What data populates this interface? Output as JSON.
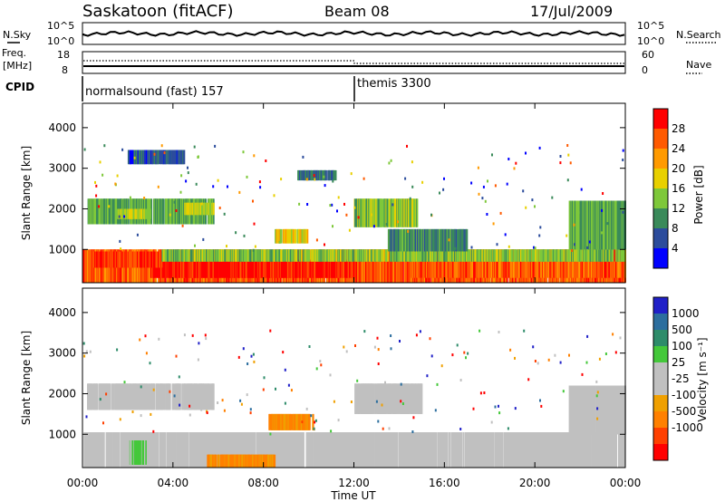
{
  "header": {
    "station": "Saskatoon (fitACF)",
    "beam": "Beam 08",
    "date": "17/Jul/2009"
  },
  "noise_panel": {
    "left_label": "N.Sky",
    "right_label": "N.Search",
    "ticks_left": [
      "10^5",
      "10^0"
    ],
    "ticks_right": [
      "10^5",
      "10^0"
    ]
  },
  "freq_panel": {
    "left_label_1": "Freq.",
    "left_label_2": "[MHz]",
    "right_label": "Nave",
    "ticks_left": [
      "18",
      "8"
    ],
    "ticks_right": [
      "60",
      "0"
    ]
  },
  "cpid": {
    "label": "CPID",
    "modes": [
      {
        "name": "normalsound (fast) 157",
        "start_hour": 0
      },
      {
        "name": "themis 3300",
        "start_hour": 12
      }
    ]
  },
  "colors": {
    "power_scale": [
      "#0000ff",
      "#2c4c9c",
      "#3a8a5a",
      "#7ec83a",
      "#e8d000",
      "#ff9a00",
      "#ff5a00",
      "#ff0000"
    ],
    "velocity_scale": [
      "#2020c8",
      "#2c6e9e",
      "#2e8c6a",
      "#44c83a",
      "#c0c0c0",
      "#c0c0c0",
      "#f0a000",
      "#ff8000",
      "#ff4000",
      "#ff0000"
    ],
    "ground_scatter": "#c0c0c0"
  },
  "chart_data": [
    {
      "type": "heatmap",
      "title": "Power",
      "xlabel": "Time UT",
      "ylabel": "Slant Range [km]",
      "x_ticks": [
        "00:00",
        "04:00",
        "08:00",
        "12:00",
        "16:00",
        "20:00",
        "00:00"
      ],
      "y_ticks": [
        1000,
        2000,
        3000,
        4000
      ],
      "xlim_hours": [
        0,
        24
      ],
      "ylim_km": [
        180,
        4600
      ],
      "colorbar": {
        "label": "Power [dB]",
        "ticks": [
          4,
          8,
          12,
          16,
          20,
          24,
          28
        ],
        "range": [
          0,
          32
        ]
      },
      "regions": [
        {
          "t": [
            0.2,
            5.8
          ],
          "r": [
            1620,
            2250
          ],
          "level": 12
        },
        {
          "t": [
            1.5,
            3.0
          ],
          "r": [
            1750,
            2000
          ],
          "level": 16
        },
        {
          "t": [
            4.5,
            5.8
          ],
          "r": [
            1850,
            2150
          ],
          "level": 16
        },
        {
          "t": [
            0.0,
            24.0
          ],
          "r": [
            180,
            1000
          ],
          "level": 26
        },
        {
          "t": [
            3.0,
            12.0
          ],
          "r": [
            300,
            750
          ],
          "level": 30
        },
        {
          "t": [
            0.5,
            3.5
          ],
          "r": [
            550,
            950
          ],
          "level": 28
        },
        {
          "t": [
            14.5,
            24.0
          ],
          "r": [
            300,
            700
          ],
          "level": 26
        },
        {
          "t": [
            3.5,
            24.0
          ],
          "r": [
            700,
            1000
          ],
          "level": 14
        },
        {
          "t": [
            12.0,
            14.8
          ],
          "r": [
            1550,
            2250
          ],
          "level": 14
        },
        {
          "t": [
            13.5,
            17.0
          ],
          "r": [
            950,
            1500
          ],
          "level": 10
        },
        {
          "t": [
            21.5,
            24.0
          ],
          "r": [
            1000,
            2200
          ],
          "level": 12
        },
        {
          "t": [
            8.5,
            10.0
          ],
          "r": [
            1150,
            1500
          ],
          "level": 18
        },
        {
          "t": [
            2.0,
            4.5
          ],
          "r": [
            3100,
            3450
          ],
          "level": 6
        },
        {
          "t": [
            9.5,
            11.2
          ],
          "r": [
            2700,
            2950
          ],
          "level": 8
        }
      ]
    },
    {
      "type": "heatmap",
      "title": "Velocity",
      "xlabel": "Time UT",
      "ylabel": "Slant Range [km]",
      "x_ticks": [
        "00:00",
        "04:00",
        "08:00",
        "12:00",
        "16:00",
        "20:00",
        "00:00"
      ],
      "y_ticks": [
        1000,
        2000,
        3000,
        4000
      ],
      "xlim_hours": [
        0,
        24
      ],
      "ylim_km": [
        180,
        4600
      ],
      "colorbar": {
        "label": "Velocity [m s⁻¹]",
        "ticks": [
          "1000",
          "500",
          "100",
          "25",
          "-25",
          "-100",
          "-500",
          "-1000"
        ]
      },
      "regions": [
        {
          "t": [
            0.0,
            24.0
          ],
          "r": [
            180,
            1050
          ],
          "level": "ground"
        },
        {
          "t": [
            0.2,
            5.8
          ],
          "r": [
            1600,
            2250
          ],
          "level": "ground"
        },
        {
          "t": [
            2.0,
            2.8
          ],
          "r": [
            250,
            850
          ],
          "level": 100
        },
        {
          "t": [
            5.5,
            8.5
          ],
          "r": [
            180,
            500
          ],
          "level": -100
        },
        {
          "t": [
            8.2,
            10.2
          ],
          "r": [
            1100,
            1500
          ],
          "level": -100
        },
        {
          "t": [
            12.0,
            15.0
          ],
          "r": [
            1500,
            2250
          ],
          "level": "ground"
        },
        {
          "t": [
            21.5,
            24.0
          ],
          "r": [
            1000,
            2200
          ],
          "level": "ground"
        }
      ]
    }
  ]
}
